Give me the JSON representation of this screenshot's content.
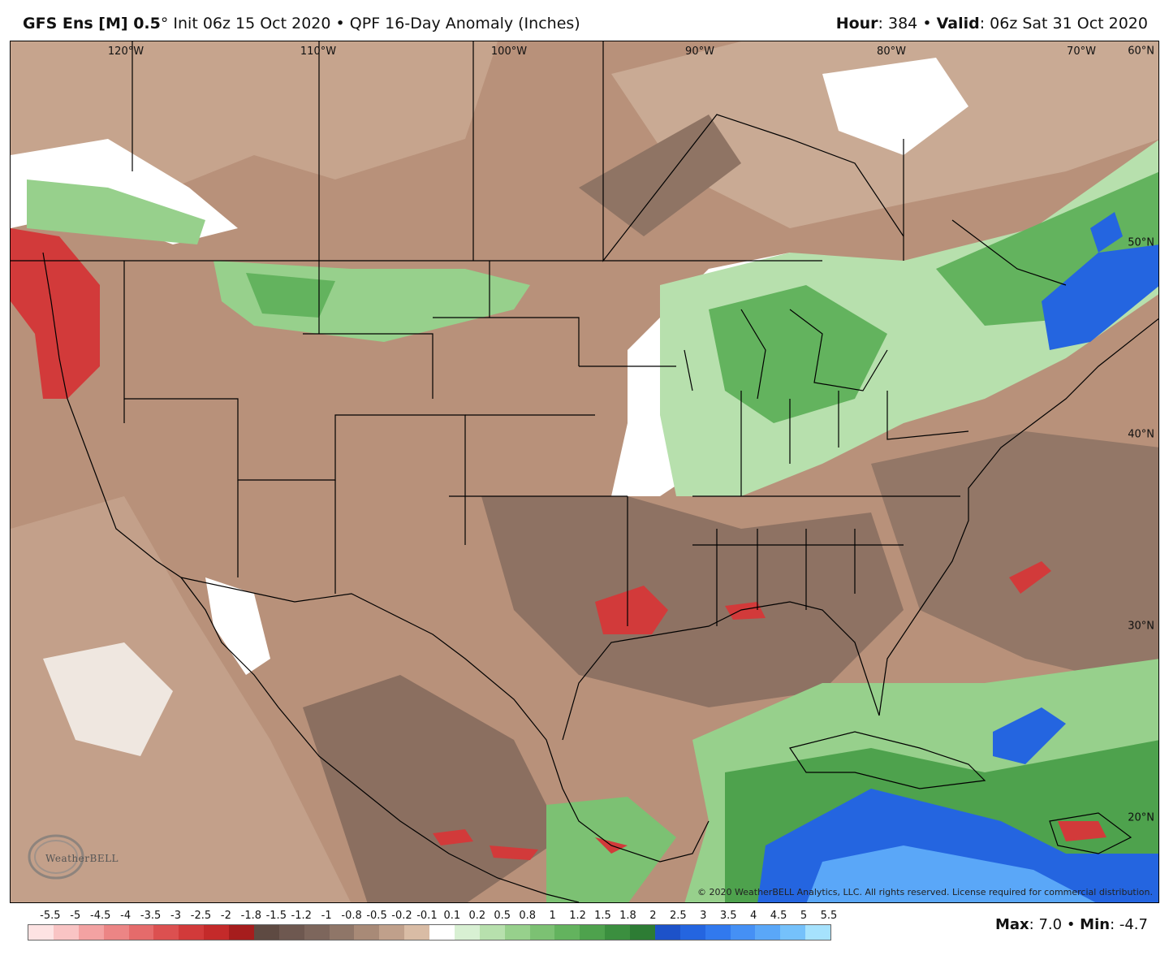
{
  "header": {
    "model": "GFS Ens [M] 0.5",
    "degree": "°",
    "init": "Init 06z 15 Oct 2020",
    "sep": "•",
    "product": "QPF 16-Day Anomaly (Inches)",
    "hour_label": "Hour",
    "hour_value": ": 384",
    "valid_label": "Valid",
    "valid_value": ": 06z Sat 31 Oct 2020"
  },
  "map": {
    "lon_labels": [
      "120°W",
      "110°W",
      "100°W",
      "90°W",
      "80°W",
      "70°W"
    ],
    "lat_labels": [
      "60°N",
      "50°N",
      "40°N",
      "30°N",
      "20°N"
    ],
    "copyright": "© 2020 WeatherBELL Analytics, LLC. All rights reserved. License required for commercial distribution.",
    "logo_text": "WeatherBELL"
  },
  "legend": {
    "labels": [
      "-5.5",
      "-5",
      "-4.5",
      "-4",
      "-3.5",
      "-3",
      "-2.5",
      "-2",
      "-1.8",
      "-1.5",
      "-1.2",
      "-1",
      "-0.8",
      "-0.5",
      "-0.2",
      "-0.1",
      "0.1",
      "0.2",
      "0.5",
      "0.8",
      "1",
      "1.2",
      "1.5",
      "1.8",
      "2",
      "2.5",
      "3",
      "3.5",
      "4",
      "4.5",
      "5",
      "5.5"
    ],
    "colors": [
      "#fde3e3",
      "#f9c4c4",
      "#f3a2a2",
      "#ec8585",
      "#e56b6b",
      "#dc5050",
      "#d23a3a",
      "#c42a2a",
      "#a61d1d",
      "#5e4a42",
      "#6e5850",
      "#7d665c",
      "#8f7668",
      "#a88a77",
      "#c0a08b",
      "#d9bca5",
      "#ffffff",
      "#d8f0d3",
      "#b7e0ad",
      "#97d08c",
      "#7cc173",
      "#63b35e",
      "#4ea24d",
      "#3b8f3f",
      "#2d7c34",
      "#1d52c9",
      "#2465e0",
      "#3179ee",
      "#4590f5",
      "#5aa7f8",
      "#75c1fb",
      "#a6e2fd"
    ],
    "max_label": "Max",
    "max_value": ": 7.0",
    "min_label": "Min",
    "min_value": ": -4.7",
    "sep": "•"
  }
}
